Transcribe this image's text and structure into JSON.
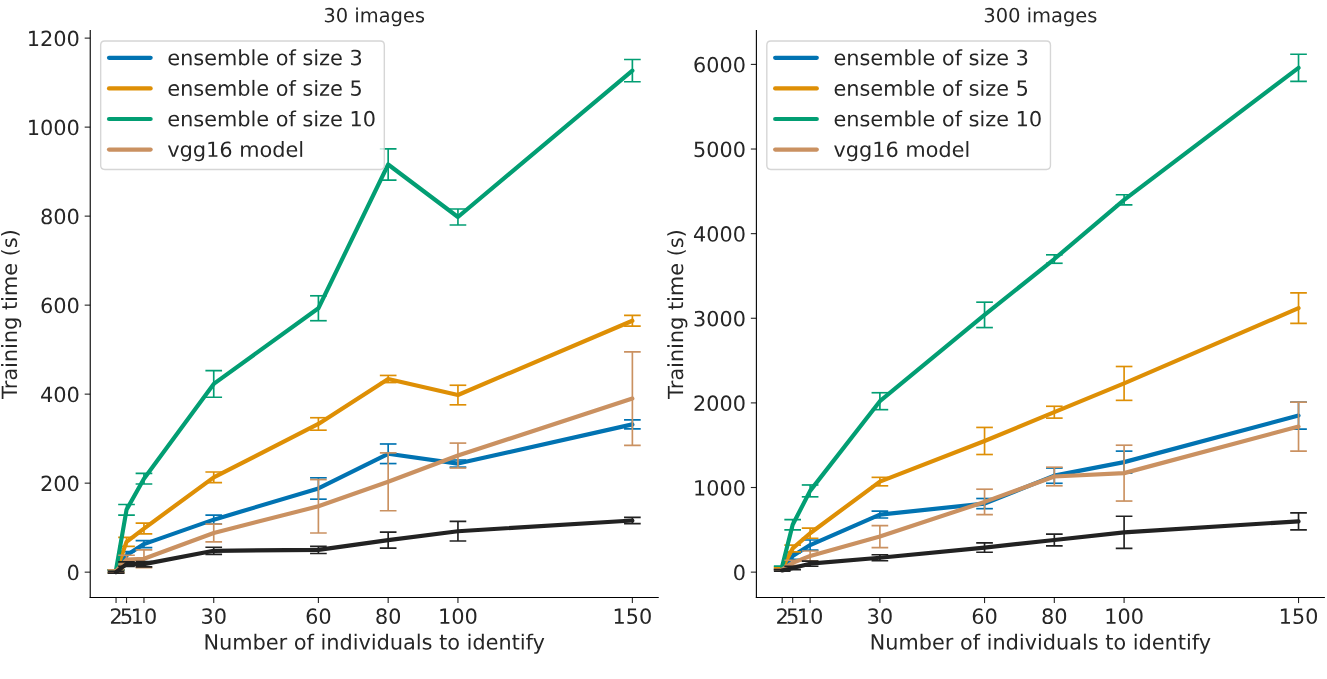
{
  "chart_data": [
    {
      "type": "line",
      "title": "30 images",
      "xlabel": "Number of individuals to identify",
      "ylabel": "Training time (s)",
      "x": [
        2,
        5,
        10,
        30,
        60,
        80,
        100,
        150
      ],
      "xlim": [
        -5.4,
        157.4
      ],
      "xticks": [
        2,
        5,
        10,
        30,
        60,
        80,
        100,
        150
      ],
      "ylim": [
        -57,
        1217
      ],
      "yticks": [
        0,
        200,
        400,
        600,
        800,
        1000,
        1200
      ],
      "grid": false,
      "legend": "top left",
      "line_style": "solid",
      "series": [
        {
          "name": "ensemble of size 3",
          "color": "#0173b2",
          "values": [
            2,
            38,
            63,
            118,
            188,
            266,
            244,
            332
          ],
          "errors": [
            3,
            8,
            8,
            10,
            24,
            22,
            8,
            10
          ]
        },
        {
          "name": "ensemble of size 5",
          "color": "#de8f05",
          "values": [
            2,
            68,
            98,
            213,
            333,
            434,
            398,
            565
          ],
          "errors": [
            3,
            10,
            12,
            12,
            14,
            8,
            22,
            12
          ]
        },
        {
          "name": "ensemble of size 10",
          "color": "#029e73",
          "values": [
            5,
            140,
            210,
            423,
            593,
            916,
            798,
            1127
          ],
          "errors": [
            null,
            12,
            12,
            30,
            28,
            35,
            18,
            25
          ]
        },
        {
          "name": "vgg16 model",
          "color": "#ca9161",
          "values": [
            2,
            28,
            30,
            88,
            148,
            203,
            262,
            390
          ],
          "errors": [
            3,
            10,
            20,
            20,
            60,
            65,
            28,
            105
          ]
        },
        {
          "color": "#222222",
          "values": [
            0,
            18,
            18,
            48,
            50,
            72,
            92,
            116
          ],
          "errors": [
            2,
            5,
            6,
            8,
            8,
            18,
            22,
            7
          ]
        }
      ]
    },
    {
      "type": "line",
      "title": "300 images",
      "xlabel": "Number of individuals to identify",
      "ylabel": "Training time (s)",
      "x": [
        2,
        5,
        10,
        30,
        60,
        80,
        100,
        150
      ],
      "xlim": [
        -5.4,
        157.4
      ],
      "xticks": [
        2,
        5,
        10,
        30,
        60,
        80,
        100,
        150
      ],
      "ylim": [
        -300,
        6400
      ],
      "yticks": [
        0,
        1000,
        2000,
        3000,
        4000,
        5000,
        6000
      ],
      "grid": false,
      "legend": "top left",
      "line_style": "solid",
      "series": [
        {
          "name": "ensemble of size 3",
          "color": "#0173b2",
          "values": [
            30,
            190,
            320,
            680,
            810,
            1140,
            1300,
            1850
          ],
          "errors": [
            null,
            40,
            60,
            40,
            60,
            90,
            130,
            160
          ]
        },
        {
          "name": "ensemble of size 5",
          "color": "#de8f05",
          "values": [
            50,
            280,
            460,
            1070,
            1550,
            1890,
            2230,
            3120
          ],
          "errors": [
            null,
            40,
            60,
            50,
            160,
            70,
            200,
            180
          ]
        },
        {
          "name": "ensemble of size 10",
          "color": "#029e73",
          "values": [
            70,
            560,
            960,
            2020,
            3040,
            3700,
            4400,
            5960
          ],
          "errors": [
            null,
            60,
            70,
            100,
            150,
            50,
            60,
            160
          ]
        },
        {
          "name": "vgg16 model",
          "color": "#ca9161",
          "values": [
            30,
            110,
            190,
            420,
            830,
            1130,
            1170,
            1720
          ],
          "errors": [
            null,
            30,
            60,
            130,
            150,
            110,
            330,
            290
          ]
        },
        {
          "color": "#222222",
          "values": [
            20,
            50,
            100,
            170,
            290,
            380,
            470,
            600
          ],
          "errors": [
            10,
            20,
            30,
            35,
            55,
            70,
            190,
            100
          ]
        }
      ]
    }
  ]
}
